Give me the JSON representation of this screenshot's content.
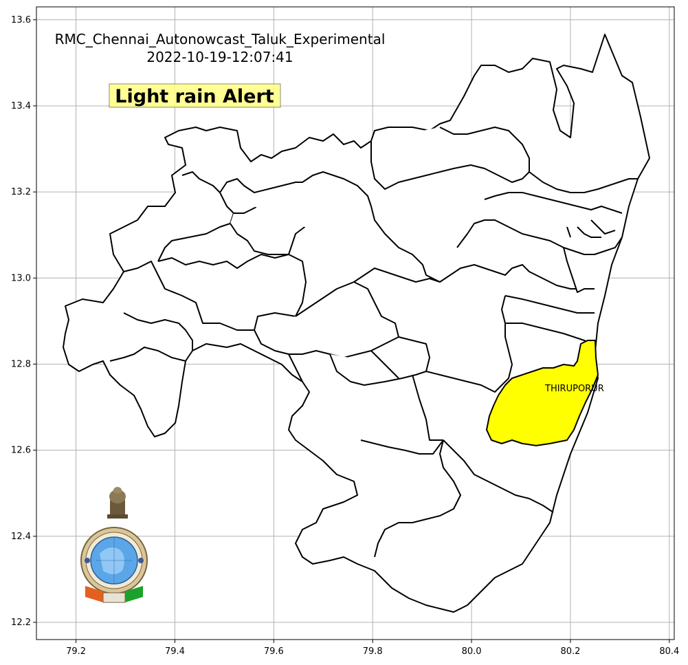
{
  "title": {
    "line1": "RMC_Chennai_Autonowcast_Taluk_Experimental",
    "line2": "2022-10-19-12:07:41"
  },
  "alert": {
    "label": "Light rain Alert",
    "box_color": "#ffff80"
  },
  "highlight": {
    "name": "THIRUPORUR",
    "color": "#ffff00"
  },
  "logo": {
    "description": "India Meteorological Department emblem",
    "ring_color": "#c9a86a",
    "globe_color": "#5aa6e8"
  },
  "chart_data": {
    "type": "map",
    "xlim": [
      79.12,
      80.41
    ],
    "ylim": [
      12.16,
      13.63
    ],
    "x_ticks": [
      "79.2",
      "79.4",
      "79.6",
      "79.8",
      "80.0",
      "80.2",
      "80.4"
    ],
    "y_ticks": [
      "12.2",
      "12.4",
      "12.6",
      "12.8",
      "13.0",
      "13.2",
      "13.4",
      "13.6"
    ],
    "x_tick_values": [
      79.2,
      79.4,
      79.6,
      79.8,
      80.0,
      80.2,
      80.4
    ],
    "y_tick_values": [
      12.2,
      12.4,
      12.6,
      12.8,
      13.0,
      13.2,
      13.4,
      13.6
    ],
    "grid": true
  }
}
